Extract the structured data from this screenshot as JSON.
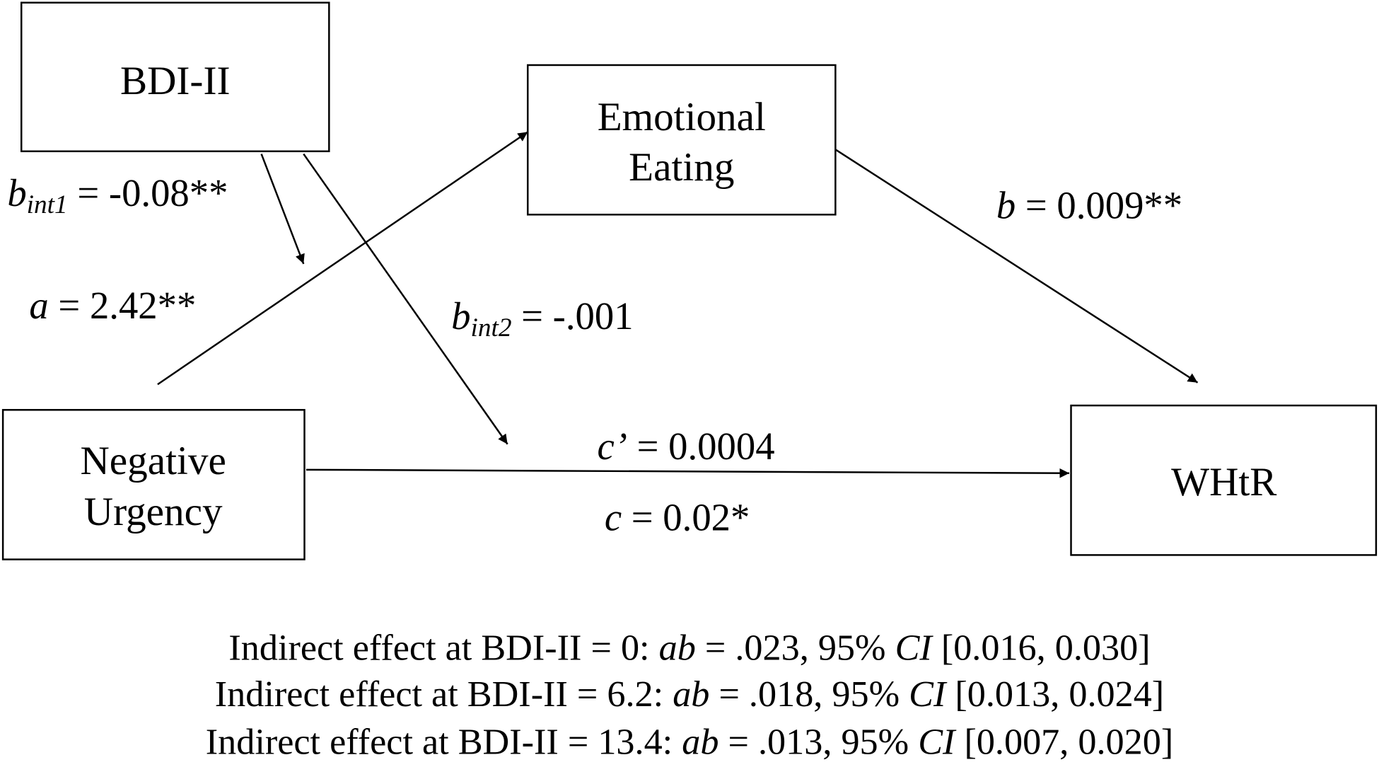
{
  "nodes": [
    {
      "label": [
        "BDI-II"
      ]
    },
    {
      "label": [
        "Emotional",
        "Eating"
      ]
    },
    {
      "label": [
        "Negative",
        "Urgency"
      ]
    },
    {
      "label": [
        "WHtR"
      ]
    }
  ],
  "paths": {
    "bint1": [
      "b",
      "int1",
      " = -0.08**"
    ],
    "a": [
      "a",
      " = 2.42**"
    ],
    "bint2": [
      "b",
      "int2",
      " = -.001"
    ],
    "b": [
      "b",
      " = 0.009**"
    ],
    "cprime": [
      "c’",
      " = 0.0004"
    ],
    "c": [
      "c",
      " = 0.02*"
    ]
  },
  "footer": [
    [
      "Indirect effect at BDI-II = 0: ",
      "ab",
      " = .023, 95% ",
      "CI",
      " [0.016, 0.030]"
    ],
    [
      "Indirect effect at BDI-II = 6.2: ",
      "ab",
      " = .018, 95% ",
      "CI",
      " [0.013, 0.024]"
    ],
    [
      "Indirect effect at BDI-II = 13.4: ",
      "ab",
      " = .013, 95% ",
      "CI",
      " [0.007, 0.020]"
    ]
  ]
}
